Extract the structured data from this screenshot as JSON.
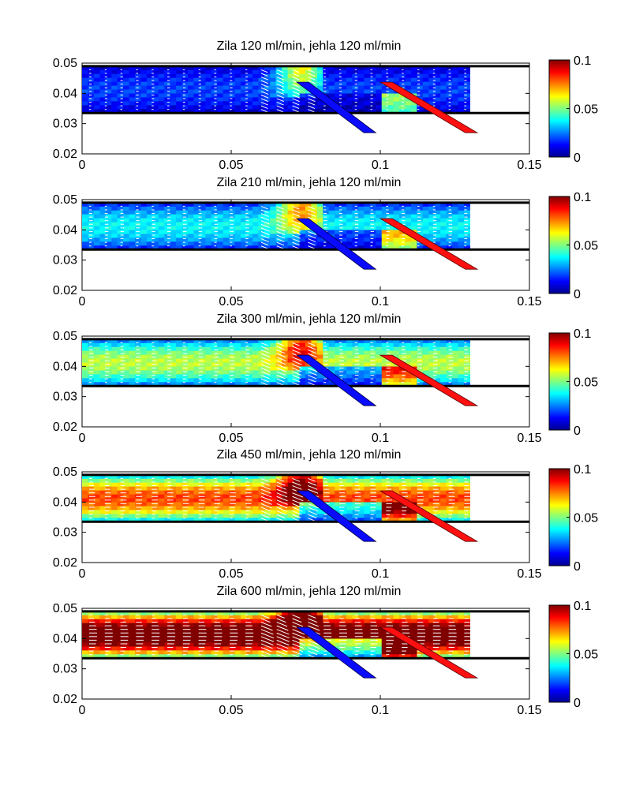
{
  "chart_data": [
    {
      "type": "heatmap",
      "title": "Zila 120 ml/min, jehla 120 ml/min",
      "xlabel": "",
      "ylabel": "",
      "xlim": [
        0,
        0.15
      ],
      "ylim": [
        0.02,
        0.05
      ],
      "xticks": [
        "0",
        "0.05",
        "0.1",
        "0.15"
      ],
      "yticks": [
        "0.02",
        "0.03",
        "0.04",
        "0.05"
      ],
      "colorbar": {
        "range": [
          0,
          0.1
        ],
        "ticks": [
          "0",
          "0.05",
          "0.1"
        ],
        "colormap": "jet"
      },
      "channel": {
        "x_range": [
          0,
          0.13
        ],
        "y_range": [
          0.0335,
          0.049
        ]
      },
      "inflow_vein_speed": 0.015,
      "jet_speed": 0.1,
      "grid": false
    },
    {
      "type": "heatmap",
      "title": "Zila 210 ml/min, jehla 120 ml/min",
      "xlabel": "",
      "ylabel": "",
      "xlim": [
        0,
        0.15
      ],
      "ylim": [
        0.02,
        0.05
      ],
      "xticks": [
        "0",
        "0.05",
        "0.1",
        "0.15"
      ],
      "yticks": [
        "0.02",
        "0.03",
        "0.04",
        "0.05"
      ],
      "colorbar": {
        "range": [
          0,
          0.1
        ],
        "ticks": [
          "0",
          "0.05",
          "0.1"
        ],
        "colormap": "jet"
      },
      "channel": {
        "x_range": [
          0,
          0.13
        ],
        "y_range": [
          0.0335,
          0.049
        ]
      },
      "inflow_vein_speed": 0.03,
      "jet_speed": 0.1,
      "grid": false
    },
    {
      "type": "heatmap",
      "title": "Zila 300 ml/min, jehla 120 ml/min",
      "xlabel": "",
      "ylabel": "",
      "xlim": [
        0,
        0.15
      ],
      "ylim": [
        0.02,
        0.05
      ],
      "xticks": [
        "0",
        "0.05",
        "0.1",
        "0.15"
      ],
      "yticks": [
        "0.02",
        "0.03",
        "0.04",
        "0.05"
      ],
      "colorbar": {
        "range": [
          0,
          0.1
        ],
        "ticks": [
          "0",
          "0.05",
          "0.1"
        ],
        "colormap": "jet"
      },
      "channel": {
        "x_range": [
          0,
          0.13
        ],
        "y_range": [
          0.0335,
          0.049
        ]
      },
      "inflow_vein_speed": 0.045,
      "jet_speed": 0.1,
      "grid": false
    },
    {
      "type": "heatmap",
      "title": "Zila 450 ml/min, jehla 120 ml/min",
      "xlabel": "",
      "ylabel": "",
      "xlim": [
        0,
        0.15
      ],
      "ylim": [
        0.02,
        0.05
      ],
      "xticks": [
        "0",
        "0.05",
        "0.1",
        "0.15"
      ],
      "yticks": [
        "0.02",
        "0.03",
        "0.04",
        "0.05"
      ],
      "colorbar": {
        "range": [
          0,
          0.1
        ],
        "ticks": [
          "0",
          "0.05",
          "0.1"
        ],
        "colormap": "jet"
      },
      "channel": {
        "x_range": [
          0,
          0.13
        ],
        "y_range": [
          0.0335,
          0.049
        ]
      },
      "inflow_vein_speed": 0.065,
      "jet_speed": 0.1,
      "grid": false
    },
    {
      "type": "heatmap",
      "title": "Zila 600 ml/min, jehla 120 ml/min",
      "xlabel": "",
      "ylabel": "",
      "xlim": [
        0,
        0.15
      ],
      "ylim": [
        0.02,
        0.05
      ],
      "xticks": [
        "0",
        "0.05",
        "0.1",
        "0.15"
      ],
      "yticks": [
        "0.02",
        "0.03",
        "0.04",
        "0.05"
      ],
      "colorbar": {
        "range": [
          0,
          0.1
        ],
        "ticks": [
          "0",
          "0.05",
          "0.1"
        ],
        "colormap": "jet"
      },
      "channel": {
        "x_range": [
          0,
          0.13
        ],
        "y_range": [
          0.0335,
          0.049
        ]
      },
      "inflow_vein_speed": 0.09,
      "jet_speed": 0.1,
      "grid": false
    }
  ]
}
